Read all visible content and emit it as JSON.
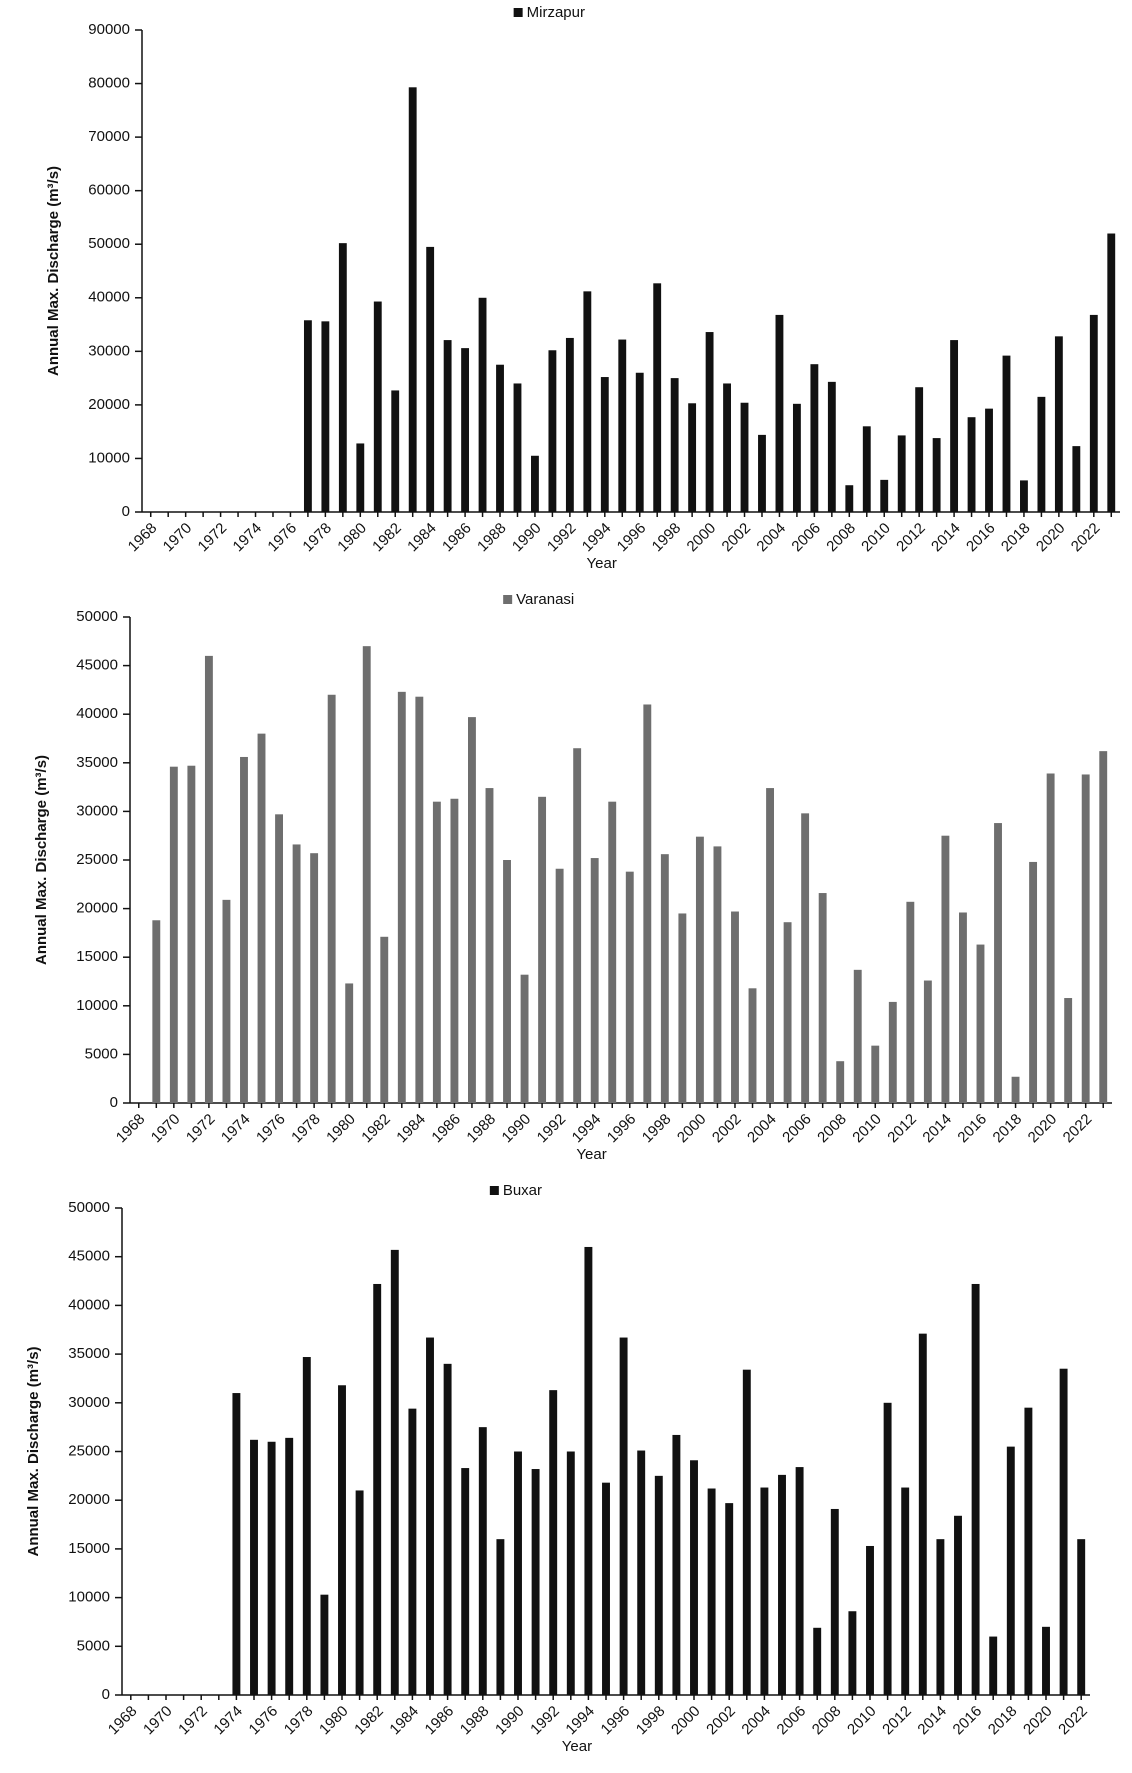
{
  "chart_data": [
    {
      "type": "bar",
      "legend": "Mirzapur",
      "x_label": "Year",
      "y_label": "Annual Max. Discharge (m³/s)",
      "color": "#111111",
      "categories": [
        "1968",
        null,
        "1970",
        null,
        "1972",
        null,
        "1974",
        null,
        "1976",
        null,
        "1978",
        null,
        "1980",
        null,
        "1982",
        null,
        "1984",
        null,
        "1986",
        null,
        "1988",
        null,
        "1990",
        null,
        "1992",
        null,
        "1994",
        null,
        "1996",
        null,
        "1998",
        null,
        "2000",
        null,
        "2002",
        null,
        "2004",
        null,
        "2006",
        null,
        "2008",
        null,
        "2010",
        null,
        "2012",
        null,
        "2014",
        null,
        "2016",
        null,
        "2018",
        null,
        "2020",
        null,
        "2022",
        null
      ],
      "values": [
        null,
        null,
        null,
        null,
        null,
        null,
        null,
        null,
        null,
        35800,
        35600,
        50200,
        12800,
        39300,
        22700,
        79300,
        49500,
        32100,
        30600,
        40000,
        27500,
        24000,
        10500,
        30200,
        32500,
        41200,
        25200,
        32200,
        26000,
        42700,
        25000,
        20300,
        33600,
        24000,
        20400,
        14400,
        36800,
        20200,
        27600,
        24300,
        5000,
        16000,
        6000,
        14300,
        23300,
        13800,
        32100,
        17700,
        19300,
        29200,
        5900,
        21500,
        32800,
        12300,
        36800,
        52000
      ],
      "ylim": [
        0,
        90000
      ],
      "yticks": [
        0,
        10000,
        20000,
        30000,
        40000,
        50000,
        60000,
        70000,
        80000,
        90000
      ]
    },
    {
      "type": "bar",
      "legend": "Varanasi",
      "x_label": "Year",
      "y_label": "Annual Max. Discharge (m³/s)",
      "color": "#6e6e6e",
      "categories": [
        "1968",
        null,
        "1970",
        null,
        "1972",
        null,
        "1974",
        null,
        "1976",
        null,
        "1978",
        null,
        "1980",
        null,
        "1982",
        null,
        "1984",
        null,
        "1986",
        null,
        "1988",
        null,
        "1990",
        null,
        "1992",
        null,
        "1994",
        null,
        "1996",
        null,
        "1998",
        null,
        "2000",
        null,
        "2002",
        null,
        "2004",
        null,
        "2006",
        null,
        "2008",
        null,
        "2010",
        null,
        "2012",
        null,
        "2014",
        null,
        "2016",
        null,
        "2018",
        null,
        "2020",
        null,
        "2022",
        null
      ],
      "values": [
        null,
        18800,
        34600,
        34700,
        46000,
        20900,
        35600,
        38000,
        29700,
        26600,
        25700,
        42000,
        12300,
        47000,
        17100,
        42300,
        41800,
        31000,
        31300,
        39700,
        32400,
        25000,
        13200,
        31500,
        24100,
        36500,
        25200,
        31000,
        23800,
        41000,
        25600,
        19500,
        27400,
        26400,
        19700,
        11800,
        32400,
        18600,
        29800,
        21600,
        4300,
        13700,
        5900,
        10400,
        20700,
        12600,
        27500,
        19600,
        16300,
        28800,
        2700,
        24800,
        33900,
        10800,
        33800,
        36200
      ],
      "ylim": [
        0,
        50000
      ],
      "yticks": [
        0,
        5000,
        10000,
        15000,
        20000,
        25000,
        30000,
        35000,
        40000,
        45000,
        50000
      ]
    },
    {
      "type": "bar",
      "legend": "Buxar",
      "x_label": "Year",
      "y_label": "Annual Max. Discharge (m³/s)",
      "color": "#111111",
      "categories": [
        "1968",
        null,
        "1970",
        null,
        "1972",
        null,
        "1974",
        null,
        "1976",
        null,
        "1978",
        null,
        "1980",
        null,
        "1982",
        null,
        "1984",
        null,
        "1986",
        null,
        "1988",
        null,
        "1990",
        null,
        "1992",
        null,
        "1994",
        null,
        "1996",
        null,
        "1998",
        null,
        "2000",
        null,
        "2002",
        null,
        "2004",
        null,
        "2006",
        null,
        "2008",
        null,
        "2010",
        null,
        "2012",
        null,
        "2014",
        null,
        "2016",
        null,
        "2018",
        null,
        "2020",
        null,
        "2022"
      ],
      "values": [
        null,
        null,
        null,
        null,
        null,
        null,
        31000,
        26200,
        26000,
        26400,
        34700,
        10300,
        31800,
        21000,
        42200,
        45700,
        29400,
        36700,
        34000,
        23300,
        27500,
        16000,
        25000,
        23200,
        31300,
        25000,
        46000,
        21800,
        36700,
        25100,
        22500,
        26700,
        24100,
        21200,
        19700,
        33400,
        21300,
        22600,
        23400,
        6900,
        19100,
        8600,
        15300,
        30000,
        21300,
        37100,
        16000,
        18400,
        42200,
        6000,
        25500,
        29500,
        7000,
        33500,
        16000
      ],
      "ylim": [
        0,
        50000
      ],
      "yticks": [
        0,
        5000,
        10000,
        15000,
        20000,
        25000,
        30000,
        35000,
        40000,
        45000,
        50000
      ]
    }
  ]
}
